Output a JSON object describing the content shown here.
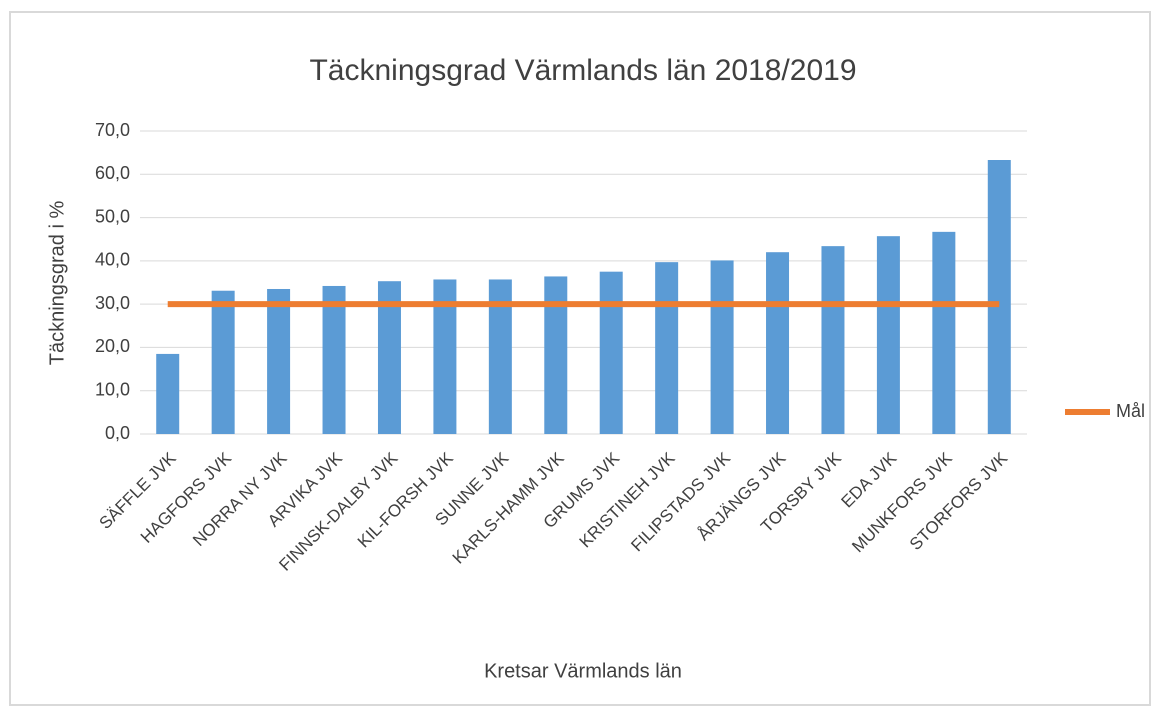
{
  "chart_data": {
    "type": "bar",
    "title": "Täckningsgrad Värmlands län 2018/2019",
    "x_label": "Kretsar Värmlands län",
    "y_label": "Täckningsgrad i %",
    "categories": [
      "SÄFFLE JVK",
      "HAGFORS JVK",
      "NORRA NY JVK",
      "ARVIKA JVK",
      "FINNSK-DALBY JVK",
      "KIL-FORSH JVK",
      "SUNNE JVK",
      "KARLS-HAMM JVK",
      "GRUMS JVK",
      "KRISTINEH JVK",
      "FILIPSTADS JVK",
      "ÅRJÄNGS JVK",
      "TORSBY JVK",
      "EDA JVK",
      "MUNKFORS JVK",
      "STORFORS JVK"
    ],
    "series": [
      {
        "type": "bar",
        "color": "#5b9bd5",
        "values": [
          18.5,
          33.1,
          33.5,
          34.2,
          35.3,
          35.7,
          35.7,
          36.4,
          37.5,
          39.7,
          40.1,
          42.0,
          43.4,
          45.7,
          46.7,
          63.3
        ]
      },
      {
        "type": "line",
        "name": "Mål",
        "color": "#ed7d31",
        "values": [
          30,
          30,
          30,
          30,
          30,
          30,
          30,
          30,
          30,
          30,
          30,
          30,
          30,
          30,
          30,
          30
        ]
      }
    ],
    "ylim": [
      0,
      70
    ],
    "yticks": [
      {
        "value": 0,
        "label": "0,0"
      },
      {
        "value": 10,
        "label": "10,0"
      },
      {
        "value": 20,
        "label": "20,0"
      },
      {
        "value": 30,
        "label": "30,0"
      },
      {
        "value": 40,
        "label": "40,0"
      },
      {
        "value": 50,
        "label": "50,0"
      },
      {
        "value": 60,
        "label": "60,0"
      },
      {
        "value": 70,
        "label": "70,0"
      }
    ],
    "grid": true,
    "legend": "right"
  }
}
